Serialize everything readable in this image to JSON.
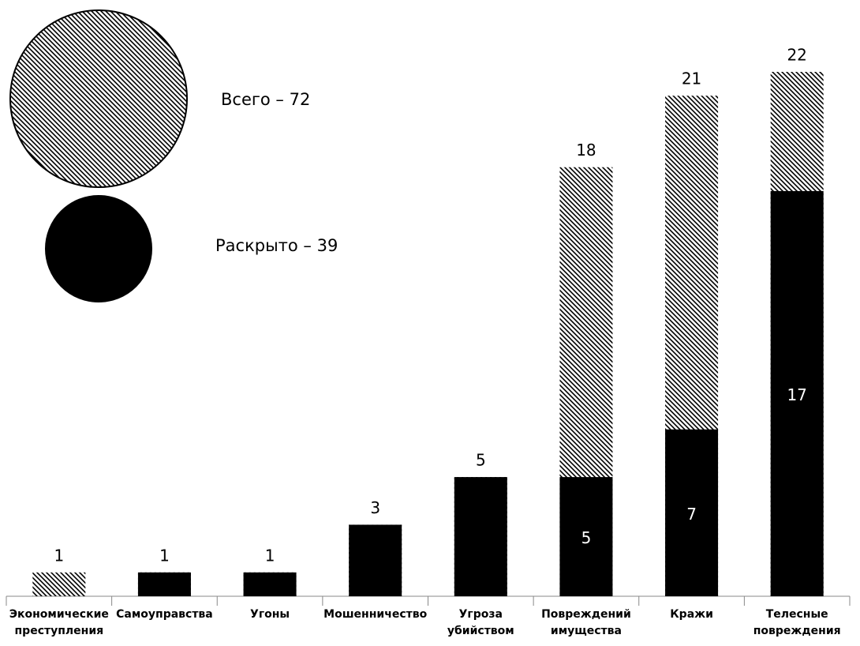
{
  "chart_data": {
    "type": "bar",
    "categories": [
      "Экономические преступления",
      "Самоуправства",
      "Угоны",
      "Мошенничество",
      "Угроза убийством",
      "Повреждений имущества",
      "Кражи",
      "Телесные повреждения"
    ],
    "series": [
      {
        "name": "Всего – 72",
        "color": "#000000",
        "style": "hatched",
        "values": [
          1,
          1,
          1,
          3,
          5,
          18,
          21,
          22
        ]
      },
      {
        "name": "Раскрыто – 39",
        "color": "#000000",
        "style": "solid",
        "values": [
          0,
          1,
          1,
          3,
          5,
          5,
          7,
          17
        ]
      }
    ],
    "overlap": true
  }
}
